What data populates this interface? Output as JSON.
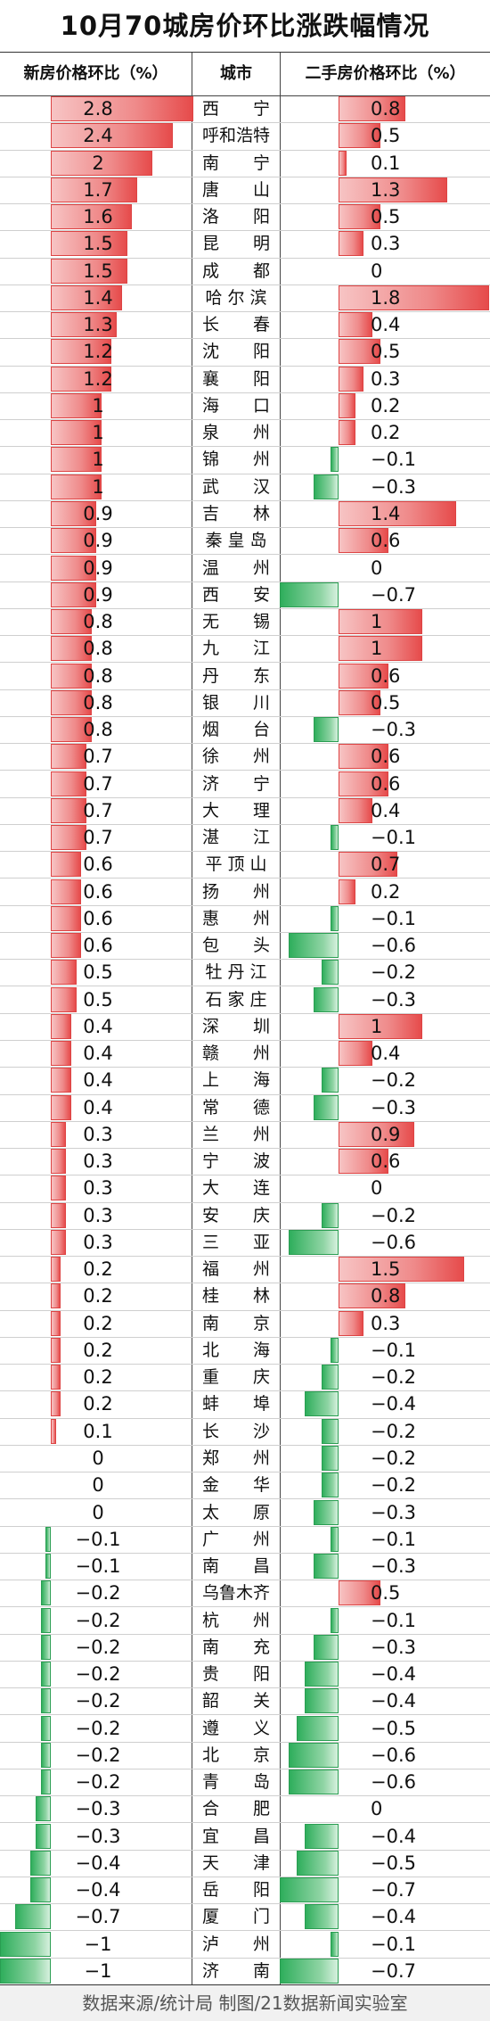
{
  "title": "10月70城房价环比涨跌幅情况",
  "footer": "数据来源/统计局  制图/21数据新闻实验室",
  "colors": {
    "positive": "#e64b4b",
    "negative": "#2fae5c"
  },
  "chart_data": {
    "type": "table",
    "headers": {
      "new": "新房价格环比（%）",
      "city": "城市",
      "second": "二手房价格环比（%）"
    },
    "rows": [
      {
        "city": "西　　宁",
        "new": 2.8,
        "second": 0.8
      },
      {
        "city": "呼和浩特",
        "new": 2.4,
        "second": 0.5
      },
      {
        "city": "南　　宁",
        "new": 2,
        "second": 0.1
      },
      {
        "city": "唐　　山",
        "new": 1.7,
        "second": 1.3
      },
      {
        "city": "洛　　阳",
        "new": 1.6,
        "second": 0.5
      },
      {
        "city": "昆　　明",
        "new": 1.5,
        "second": 0.3
      },
      {
        "city": "成　　都",
        "new": 1.5,
        "second": 0
      },
      {
        "city": "哈 尔 滨",
        "new": 1.4,
        "second": 1.8
      },
      {
        "city": "长　　春",
        "new": 1.3,
        "second": 0.4
      },
      {
        "city": "沈　　阳",
        "new": 1.2,
        "second": 0.5
      },
      {
        "city": "襄　　阳",
        "new": 1.2,
        "second": 0.3
      },
      {
        "city": "海　　口",
        "new": 1,
        "second": 0.2
      },
      {
        "city": "泉　　州",
        "new": 1,
        "second": 0.2
      },
      {
        "city": "锦　　州",
        "new": 1,
        "second": -0.1
      },
      {
        "city": "武　　汉",
        "new": 1,
        "second": -0.3
      },
      {
        "city": "吉　　林",
        "new": 0.9,
        "second": 1.4
      },
      {
        "city": "秦 皇 岛",
        "new": 0.9,
        "second": 0.6
      },
      {
        "city": "温　　州",
        "new": 0.9,
        "second": 0
      },
      {
        "city": "西　　安",
        "new": 0.9,
        "second": -0.7
      },
      {
        "city": "无　　锡",
        "new": 0.8,
        "second": 1
      },
      {
        "city": "九　　江",
        "new": 0.8,
        "second": 1
      },
      {
        "city": "丹　　东",
        "new": 0.8,
        "second": 0.6
      },
      {
        "city": "银　　川",
        "new": 0.8,
        "second": 0.5
      },
      {
        "city": "烟　　台",
        "new": 0.8,
        "second": -0.3
      },
      {
        "city": "徐　　州",
        "new": 0.7,
        "second": 0.6
      },
      {
        "city": "济　　宁",
        "new": 0.7,
        "second": 0.6
      },
      {
        "city": "大　　理",
        "new": 0.7,
        "second": 0.4
      },
      {
        "city": "湛　　江",
        "new": 0.7,
        "second": -0.1
      },
      {
        "city": "平 顶 山",
        "new": 0.6,
        "second": 0.7
      },
      {
        "city": "扬　　州",
        "new": 0.6,
        "second": 0.2
      },
      {
        "city": "惠　　州",
        "new": 0.6,
        "second": -0.1
      },
      {
        "city": "包　　头",
        "new": 0.6,
        "second": -0.6
      },
      {
        "city": "牡 丹 江",
        "new": 0.5,
        "second": -0.2
      },
      {
        "city": "石 家 庄",
        "new": 0.5,
        "second": -0.3
      },
      {
        "city": "深　　圳",
        "new": 0.4,
        "second": 1
      },
      {
        "city": "赣　　州",
        "new": 0.4,
        "second": 0.4
      },
      {
        "city": "上　　海",
        "new": 0.4,
        "second": -0.2
      },
      {
        "city": "常　　德",
        "new": 0.4,
        "second": -0.3
      },
      {
        "city": "兰　　州",
        "new": 0.3,
        "second": 0.9
      },
      {
        "city": "宁　　波",
        "new": 0.3,
        "second": 0.6
      },
      {
        "city": "大　　连",
        "new": 0.3,
        "second": 0
      },
      {
        "city": "安　　庆",
        "new": 0.3,
        "second": -0.2
      },
      {
        "city": "三　　亚",
        "new": 0.3,
        "second": -0.6
      },
      {
        "city": "福　　州",
        "new": 0.2,
        "second": 1.5
      },
      {
        "city": "桂　　林",
        "new": 0.2,
        "second": 0.8
      },
      {
        "city": "南　　京",
        "new": 0.2,
        "second": 0.3
      },
      {
        "city": "北　　海",
        "new": 0.2,
        "second": -0.1
      },
      {
        "city": "重　　庆",
        "new": 0.2,
        "second": -0.2
      },
      {
        "city": "蚌　　埠",
        "new": 0.2,
        "second": -0.4
      },
      {
        "city": "长　　沙",
        "new": 0.1,
        "second": -0.2
      },
      {
        "city": "郑　　州",
        "new": 0,
        "second": -0.2
      },
      {
        "city": "金　　华",
        "new": 0,
        "second": -0.2
      },
      {
        "city": "太　　原",
        "new": 0,
        "second": -0.3
      },
      {
        "city": "广　　州",
        "new": -0.1,
        "second": -0.1
      },
      {
        "city": "南　　昌",
        "new": -0.1,
        "second": -0.3
      },
      {
        "city": "乌鲁木齐",
        "new": -0.2,
        "second": 0.5
      },
      {
        "city": "杭　　州",
        "new": -0.2,
        "second": -0.1
      },
      {
        "city": "南　　充",
        "new": -0.2,
        "second": -0.3
      },
      {
        "city": "贵　　阳",
        "new": -0.2,
        "second": -0.4
      },
      {
        "city": "韶　　关",
        "new": -0.2,
        "second": -0.4
      },
      {
        "city": "遵　　义",
        "new": -0.2,
        "second": -0.5
      },
      {
        "city": "北　　京",
        "new": -0.2,
        "second": -0.6
      },
      {
        "city": "青　　岛",
        "new": -0.2,
        "second": -0.6
      },
      {
        "city": "合　　肥",
        "new": -0.3,
        "second": 0
      },
      {
        "city": "宜　　昌",
        "new": -0.3,
        "second": -0.4
      },
      {
        "city": "天　　津",
        "new": -0.4,
        "second": -0.5
      },
      {
        "city": "岳　　阳",
        "new": -0.4,
        "second": -0.7
      },
      {
        "city": "厦　　门",
        "new": -0.7,
        "second": -0.4
      },
      {
        "city": "泸　　州",
        "new": -1,
        "second": -0.1
      },
      {
        "city": "济　　南",
        "new": -1,
        "second": -0.7
      }
    ]
  }
}
